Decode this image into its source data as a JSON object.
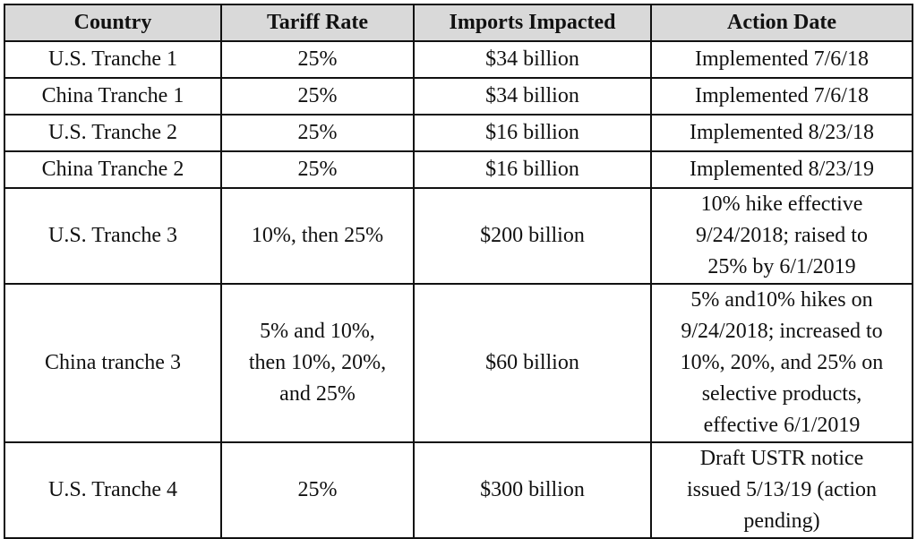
{
  "table": {
    "headers": [
      "Country",
      "Tariff Rate",
      "Imports Impacted",
      "Action Date"
    ],
    "rows": [
      {
        "country": "U.S. Tranche 1",
        "rate": "25%",
        "imports": "$34 billion",
        "date": "Implemented 7/6/18"
      },
      {
        "country": "China Tranche 1",
        "rate": "25%",
        "imports": "$34 billion",
        "date": "Implemented 7/6/18"
      },
      {
        "country": "U.S. Tranche 2",
        "rate": "25%",
        "imports": "$16 billion",
        "date": "Implemented 8/23/18"
      },
      {
        "country": "China Tranche 2",
        "rate": "25%",
        "imports": "$16 billion",
        "date": "Implemented 8/23/19"
      },
      {
        "country": "U.S. Tranche 3",
        "rate": "10%, then 25%",
        "imports": "$200 billion",
        "date": "10% hike effective\n9/24/2018; raised to\n25% by 6/1/2019"
      },
      {
        "country": "China tranche 3",
        "rate": "5% and 10%,\nthen 10%, 20%,\nand 25%",
        "imports": "$60 billion",
        "date": "5% and10% hikes on\n9/24/2018; increased to\n10%, 20%, and 25% on\nselective products,\neffective 6/1/2019"
      },
      {
        "country": "U.S. Tranche 4",
        "rate": "25%",
        "imports": "$300 billion",
        "date": "Draft USTR notice\nissued 5/13/19 (action\npending)"
      }
    ]
  }
}
